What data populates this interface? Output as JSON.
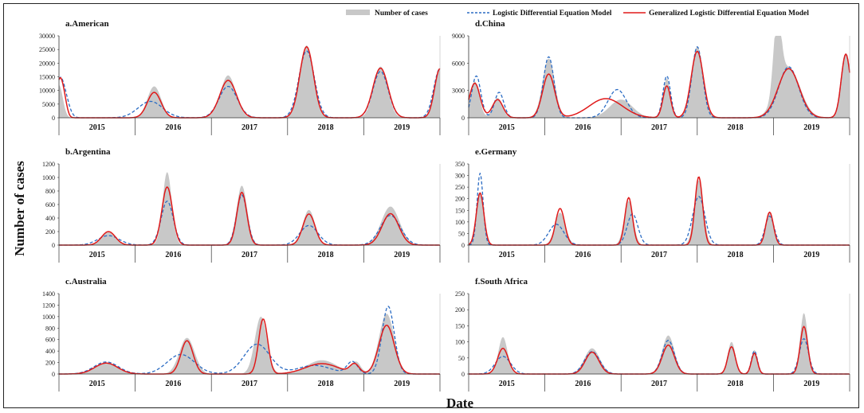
{
  "figure": {
    "xlabel": "Date",
    "ylabel": "Number of cases"
  },
  "legend": {
    "cases": "Number of cases",
    "logistic": "Logistic Differential Equation Model",
    "generalized": "Generalized Logistic Differential Equation Model",
    "colors": {
      "cases": "#c8c8c8",
      "logistic": "#2b6cc4",
      "generalized": "#e01a1a"
    }
  },
  "chart_data": [
    {
      "type": "area",
      "title": "a.American",
      "ylim": [
        0,
        30000
      ],
      "yticks": [
        "0",
        "5000",
        "10000",
        "15000",
        "20000",
        "25000",
        "30000"
      ],
      "years": [
        "2015",
        "2016",
        "2017",
        "2018",
        "2019"
      ],
      "series": [
        {
          "name": "Number of cases",
          "peaks": [
            [
              0.0,
              12000,
              0.05
            ],
            [
              1.25,
              11500,
              0.09
            ],
            [
              2.22,
              15500,
              0.1
            ],
            [
              3.25,
              26500,
              0.09
            ],
            [
              4.22,
              18800,
              0.09
            ],
            [
              5.0,
              18000,
              0.07
            ]
          ]
        },
        {
          "name": "Logistic Differential Equation Model",
          "peaks": [
            [
              0.0,
              10000,
              0.05
            ],
            [
              0.07,
              8000,
              0.06
            ],
            [
              1.2,
              6000,
              0.16
            ],
            [
              2.22,
              11500,
              0.12
            ],
            [
              3.25,
              24500,
              0.1
            ],
            [
              4.22,
              17000,
              0.1
            ],
            [
              5.0,
              18000,
              0.08
            ]
          ]
        },
        {
          "name": "Generalized Logistic Differential Equation Model",
          "peaks": [
            [
              0.0,
              11500,
              0.04
            ],
            [
              0.06,
              7500,
              0.04
            ],
            [
              1.25,
              9300,
              0.09
            ],
            [
              2.22,
              13700,
              0.11
            ],
            [
              3.25,
              26000,
              0.09
            ],
            [
              4.22,
              18200,
              0.1
            ],
            [
              5.0,
              18000,
              0.07
            ]
          ]
        }
      ]
    },
    {
      "type": "area",
      "title": "b.Argentina",
      "ylim": [
        0,
        1200
      ],
      "yticks": [
        "0",
        "200",
        "400",
        "600",
        "800",
        "1000",
        "1200"
      ],
      "years": [
        "2015",
        "2016",
        "2017",
        "2018",
        "2019"
      ],
      "series": [
        {
          "name": "Number of cases",
          "peaks": [
            [
              0.65,
              190,
              0.09
            ],
            [
              1.42,
              1080,
              0.06
            ],
            [
              2.4,
              880,
              0.07
            ],
            [
              3.28,
              520,
              0.08
            ],
            [
              4.35,
              570,
              0.12
            ]
          ]
        },
        {
          "name": "Logistic Differential Equation Model",
          "peaks": [
            [
              0.65,
              140,
              0.14
            ],
            [
              1.42,
              650,
              0.08
            ],
            [
              2.4,
              740,
              0.07
            ],
            [
              3.28,
              290,
              0.12
            ],
            [
              4.35,
              440,
              0.13
            ]
          ]
        },
        {
          "name": "Generalized Logistic Differential Equation Model",
          "peaks": [
            [
              0.65,
              200,
              0.09
            ],
            [
              1.42,
              860,
              0.07
            ],
            [
              2.4,
              780,
              0.065
            ],
            [
              3.28,
              460,
              0.08
            ],
            [
              4.35,
              465,
              0.11
            ]
          ]
        }
      ]
    },
    {
      "type": "area",
      "title": "c.Australia",
      "ylim": [
        0,
        1400
      ],
      "yticks": [
        "0",
        "200",
        "400",
        "600",
        "800",
        "1000",
        "1200",
        "1400"
      ],
      "years": [
        "2015",
        "2016",
        "2017",
        "2018",
        "2019"
      ],
      "series": [
        {
          "name": "Number of cases",
          "peaks": [
            [
              0.62,
              190,
              0.15
            ],
            [
              1.68,
              630,
              0.1
            ],
            [
              2.65,
              1000,
              0.08
            ],
            [
              3.45,
              240,
              0.2
            ],
            [
              3.9,
              200,
              0.06
            ],
            [
              4.3,
              1050,
              0.1
            ]
          ]
        },
        {
          "name": "Logistic Differential Equation Model",
          "peaks": [
            [
              0.62,
              210,
              0.16
            ],
            [
              1.6,
              340,
              0.18
            ],
            [
              2.6,
              520,
              0.17
            ],
            [
              3.35,
              150,
              0.22
            ],
            [
              3.85,
              210,
              0.07
            ],
            [
              4.32,
              1180,
              0.08
            ]
          ]
        },
        {
          "name": "Generalized Logistic Differential Equation Model",
          "peaks": [
            [
              0.62,
              190,
              0.15
            ],
            [
              1.68,
              580,
              0.08
            ],
            [
              2.68,
              960,
              0.06
            ],
            [
              3.45,
              180,
              0.22
            ],
            [
              3.88,
              160,
              0.06
            ],
            [
              4.3,
              850,
              0.1
            ]
          ]
        }
      ]
    },
    {
      "type": "area",
      "title": "d.China",
      "ylim": [
        0,
        9000
      ],
      "yticks": [
        "0",
        "3000",
        "6000",
        "9000"
      ],
      "years": [
        "2015",
        "2016",
        "2017",
        "2018",
        "2019"
      ],
      "series": [
        {
          "name": "Number of cases",
          "peaks": [
            [
              0.08,
              4000,
              0.06
            ],
            [
              0.38,
              2200,
              0.06
            ],
            [
              1.05,
              6500,
              0.08
            ],
            [
              2.0,
              2000,
              0.15
            ],
            [
              2.6,
              4300,
              0.05
            ],
            [
              3.0,
              7800,
              0.08
            ],
            [
              4.05,
              8200,
              0.05
            ],
            [
              4.2,
              5500,
              0.15
            ],
            [
              4.95,
              7000,
              0.06
            ]
          ]
        },
        {
          "name": "Logistic Differential Equation Model",
          "peaks": [
            [
              0.1,
              4600,
              0.06
            ],
            [
              0.4,
              2800,
              0.06
            ],
            [
              1.05,
              6700,
              0.07
            ],
            [
              1.95,
              3100,
              0.12
            ],
            [
              2.6,
              4600,
              0.05
            ],
            [
              3.0,
              7800,
              0.07
            ],
            [
              4.2,
              5600,
              0.13
            ],
            [
              4.95,
              7000,
              0.06
            ]
          ]
        },
        {
          "name": "Generalized Logistic Differential Equation Model",
          "peaks": [
            [
              0.08,
              3800,
              0.07
            ],
            [
              0.38,
              2000,
              0.07
            ],
            [
              1.05,
              4800,
              0.08
            ],
            [
              1.8,
              2100,
              0.22
            ],
            [
              2.6,
              3500,
              0.05
            ],
            [
              3.0,
              7300,
              0.08
            ],
            [
              4.2,
              5400,
              0.14
            ],
            [
              4.95,
              7000,
              0.06
            ]
          ]
        }
      ]
    },
    {
      "type": "area",
      "title": "e.Germany",
      "ylim": [
        0,
        350
      ],
      "yticks": [
        "0",
        "50",
        "100",
        "150",
        "200",
        "250",
        "300",
        "350"
      ],
      "years": [
        "2015",
        "2016",
        "2017",
        "2018",
        "2019"
      ],
      "series": [
        {
          "name": "Number of cases",
          "peaks": [
            [
              0.15,
              230,
              0.05
            ],
            [
              1.2,
              140,
              0.07
            ],
            [
              2.1,
              190,
              0.06
            ],
            [
              3.02,
              280,
              0.06
            ],
            [
              3.95,
              140,
              0.05
            ]
          ]
        },
        {
          "name": "Logistic Differential Equation Model",
          "peaks": [
            [
              0.15,
              310,
              0.04
            ],
            [
              1.15,
              90,
              0.1
            ],
            [
              2.15,
              135,
              0.07
            ],
            [
              3.02,
              210,
              0.08
            ],
            [
              3.95,
              125,
              0.06
            ]
          ]
        },
        {
          "name": "Generalized Logistic Differential Equation Model",
          "peaks": [
            [
              0.15,
              225,
              0.05
            ],
            [
              1.2,
              158,
              0.06
            ],
            [
              2.1,
              205,
              0.05
            ],
            [
              3.02,
              295,
              0.05
            ],
            [
              3.95,
              142,
              0.05
            ]
          ]
        }
      ]
    },
    {
      "type": "area",
      "title": "f.South Africa",
      "ylim": [
        0,
        250
      ],
      "yticks": [
        "0",
        "50",
        "100",
        "150",
        "200",
        "250"
      ],
      "years": [
        "2015",
        "2016",
        "2017",
        "2018",
        "2019"
      ],
      "series": [
        {
          "name": "Number of cases",
          "peaks": [
            [
              0.45,
              115,
              0.06
            ],
            [
              1.62,
              80,
              0.1
            ],
            [
              2.62,
              120,
              0.08
            ],
            [
              3.45,
              100,
              0.05
            ],
            [
              3.75,
              75,
              0.04
            ],
            [
              4.4,
              190,
              0.05
            ]
          ]
        },
        {
          "name": "Logistic Differential Equation Model",
          "peaks": [
            [
              0.45,
              55,
              0.1
            ],
            [
              1.62,
              70,
              0.1
            ],
            [
              2.62,
              105,
              0.08
            ],
            [
              3.45,
              85,
              0.05
            ],
            [
              3.75,
              72,
              0.04
            ],
            [
              4.4,
              110,
              0.06
            ]
          ]
        },
        {
          "name": "Generalized Logistic Differential Equation Model",
          "peaks": [
            [
              0.45,
              80,
              0.07
            ],
            [
              1.62,
              68,
              0.09
            ],
            [
              2.62,
              90,
              0.08
            ],
            [
              3.45,
              85,
              0.05
            ],
            [
              3.75,
              65,
              0.04
            ],
            [
              4.4,
              148,
              0.05
            ]
          ]
        }
      ]
    }
  ]
}
